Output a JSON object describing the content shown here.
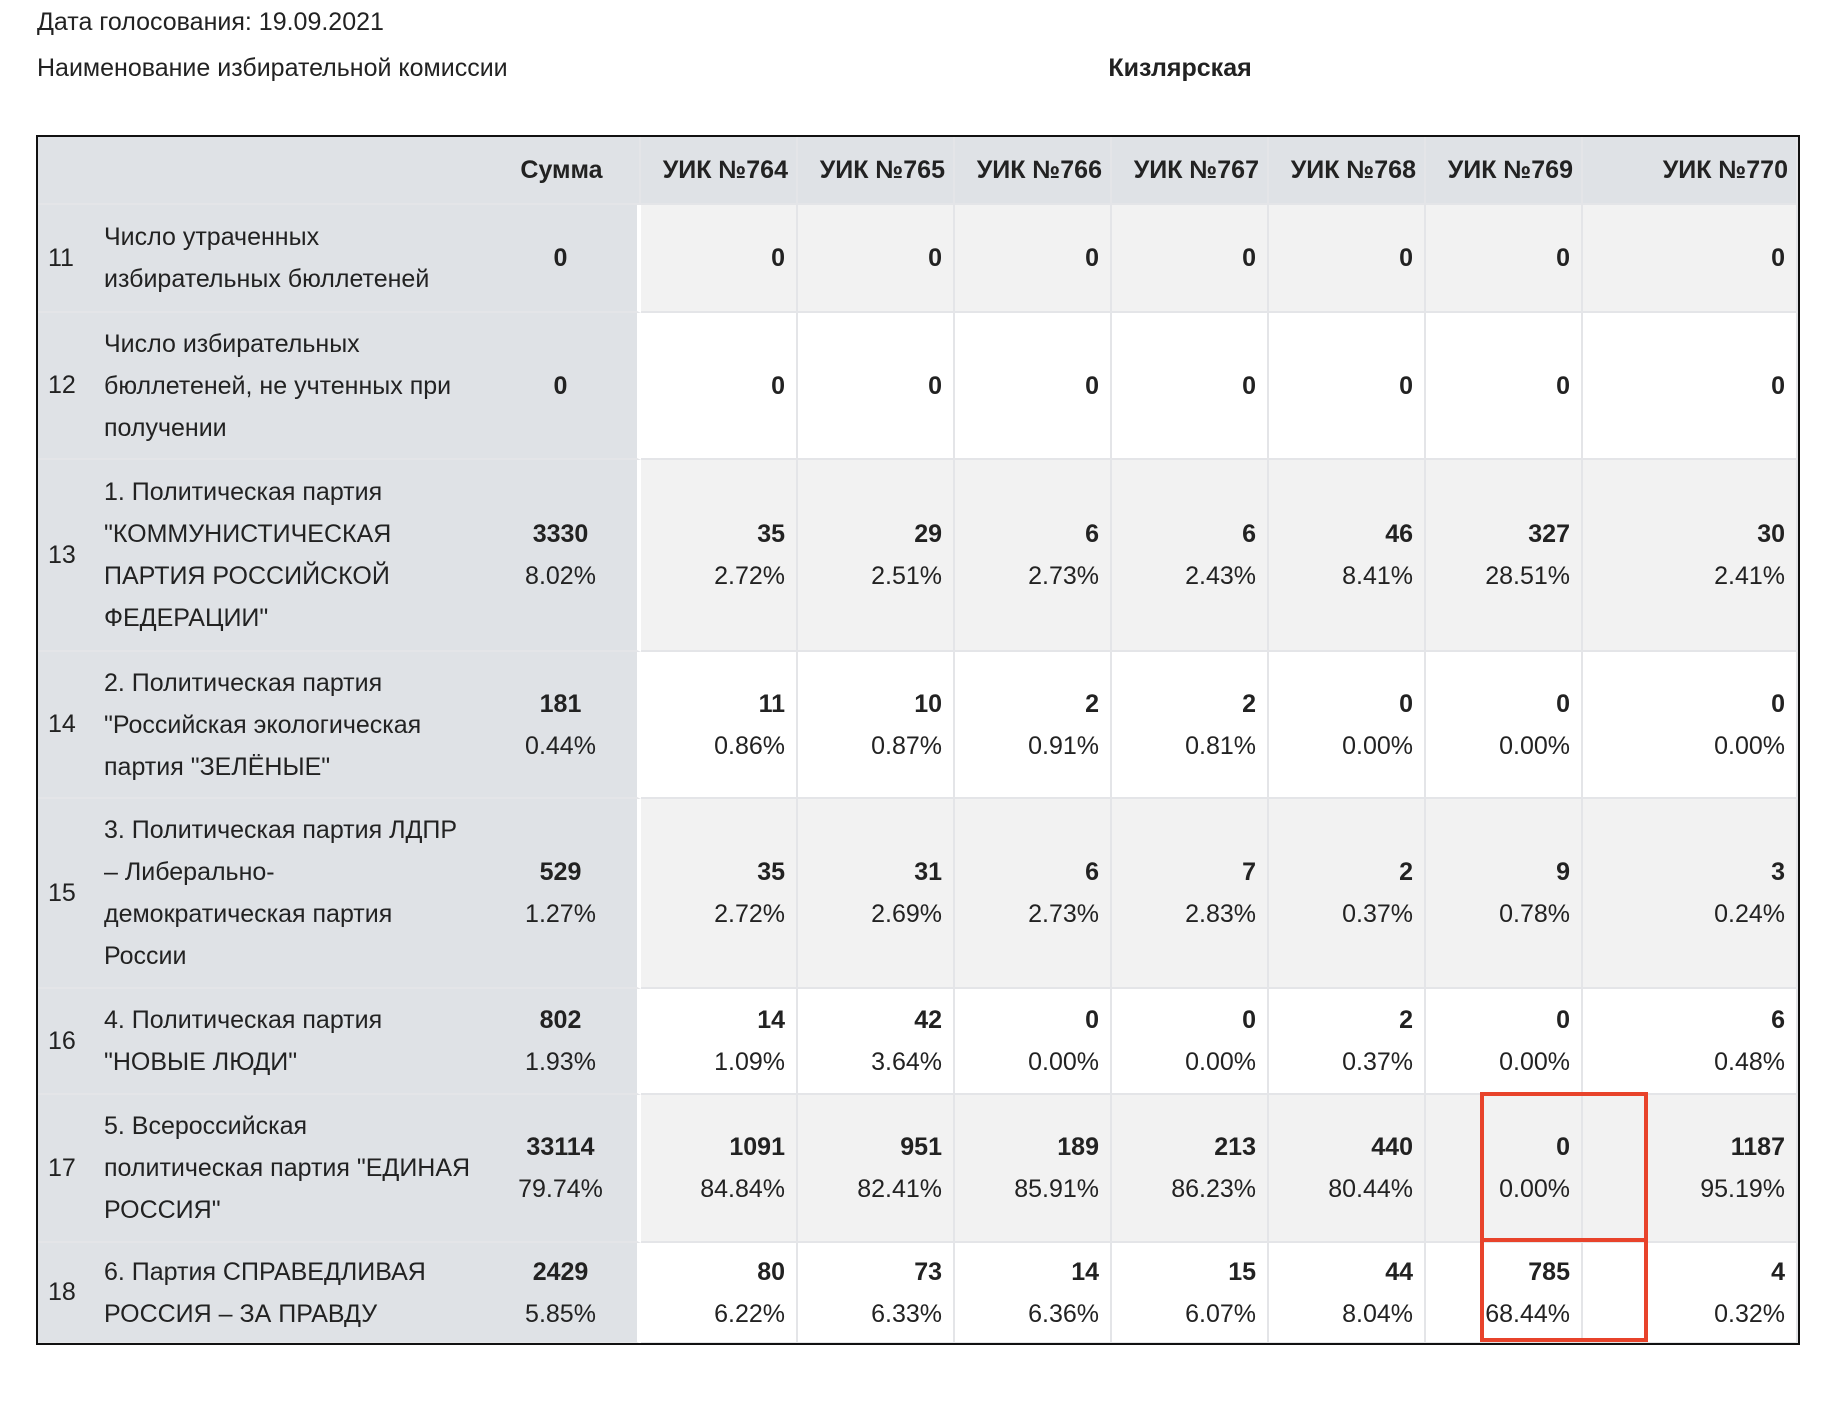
{
  "header": {
    "date_label": "Дата голосования:  19.09.2021",
    "commission_label": "Наименование избирательной комиссии",
    "commission_value": "Кизлярская"
  },
  "table": {
    "columns": [
      "Сумма",
      "УИК №764",
      "УИК №765",
      "УИК №766",
      "УИК №767",
      "УИК №768",
      "УИК №769",
      "УИК №770"
    ],
    "rows": [
      {
        "num": "11",
        "label": "Число утраченных\nизбирательных бюллетеней",
        "values": [
          [
            "0",
            ""
          ],
          [
            "0",
            ""
          ],
          [
            "0",
            ""
          ],
          [
            "0",
            ""
          ],
          [
            "0",
            ""
          ],
          [
            "0",
            ""
          ],
          [
            "0",
            ""
          ],
          [
            "0",
            ""
          ]
        ]
      },
      {
        "num": "12",
        "label": "Число избирательных\nбюллетеней, не учтенных при\nполучении",
        "values": [
          [
            "0",
            ""
          ],
          [
            "0",
            ""
          ],
          [
            "0",
            ""
          ],
          [
            "0",
            ""
          ],
          [
            "0",
            ""
          ],
          [
            "0",
            ""
          ],
          [
            "0",
            ""
          ],
          [
            "0",
            ""
          ]
        ]
      },
      {
        "num": "13",
        "label": "1. Политическая партия\n\"КОММУНИСТИЧЕСКАЯ\nПАРТИЯ РОССИЙСКОЙ\nФЕДЕРАЦИИ\"",
        "values": [
          [
            "3330",
            "8.02%"
          ],
          [
            "35",
            "2.72%"
          ],
          [
            "29",
            "2.51%"
          ],
          [
            "6",
            "2.73%"
          ],
          [
            "6",
            "2.43%"
          ],
          [
            "46",
            "8.41%"
          ],
          [
            "327",
            "28.51%"
          ],
          [
            "30",
            "2.41%"
          ]
        ]
      },
      {
        "num": "14",
        "label": "2. Политическая партия\n\"Российская экологическая\nпартия \"ЗЕЛЁНЫЕ\"",
        "values": [
          [
            "181",
            "0.44%"
          ],
          [
            "11",
            "0.86%"
          ],
          [
            "10",
            "0.87%"
          ],
          [
            "2",
            "0.91%"
          ],
          [
            "2",
            "0.81%"
          ],
          [
            "0",
            "0.00%"
          ],
          [
            "0",
            "0.00%"
          ],
          [
            "0",
            "0.00%"
          ]
        ]
      },
      {
        "num": "15",
        "label": "3. Политическая партия ЛДПР\n– Либерально-\nдемократическая партия\nРоссии",
        "values": [
          [
            "529",
            "1.27%"
          ],
          [
            "35",
            "2.72%"
          ],
          [
            "31",
            "2.69%"
          ],
          [
            "6",
            "2.73%"
          ],
          [
            "7",
            "2.83%"
          ],
          [
            "2",
            "0.37%"
          ],
          [
            "9",
            "0.78%"
          ],
          [
            "3",
            "0.24%"
          ]
        ]
      },
      {
        "num": "16",
        "label": "4. Политическая партия\n\"НОВЫЕ ЛЮДИ\"",
        "values": [
          [
            "802",
            "1.93%"
          ],
          [
            "14",
            "1.09%"
          ],
          [
            "42",
            "3.64%"
          ],
          [
            "0",
            "0.00%"
          ],
          [
            "0",
            "0.00%"
          ],
          [
            "2",
            "0.37%"
          ],
          [
            "0",
            "0.00%"
          ],
          [
            "6",
            "0.48%"
          ]
        ]
      },
      {
        "num": "17",
        "label": "5. Всероссийская\nполитическая партия \"ЕДИНАЯ\nРОССИЯ\"",
        "values": [
          [
            "33114",
            "79.74%"
          ],
          [
            "1091",
            "84.84%"
          ],
          [
            "951",
            "82.41%"
          ],
          [
            "189",
            "85.91%"
          ],
          [
            "213",
            "86.23%"
          ],
          [
            "440",
            "80.44%"
          ],
          [
            "0",
            "0.00%"
          ],
          [
            "1187",
            "95.19%"
          ]
        ]
      },
      {
        "num": "18",
        "label": "6. Партия СПРАВЕДЛИВАЯ\nРОССИЯ – ЗА ПРАВДУ",
        "values": [
          [
            "2429",
            "5.85%"
          ],
          [
            "80",
            "6.22%"
          ],
          [
            "73",
            "6.33%"
          ],
          [
            "14",
            "6.36%"
          ],
          [
            "15",
            "6.07%"
          ],
          [
            "44",
            "8.04%"
          ],
          [
            "785",
            "68.44%"
          ],
          [
            "4",
            "0.32%"
          ]
        ]
      }
    ]
  },
  "highlight_color": "#e8432b"
}
